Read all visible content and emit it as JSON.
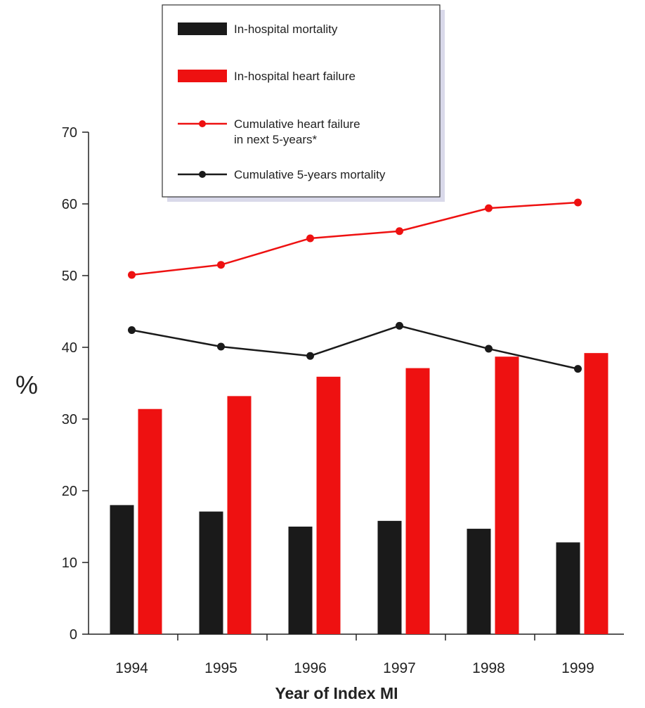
{
  "chart_data": {
    "type": "bar",
    "categories": [
      "1994",
      "1995",
      "1996",
      "1997",
      "1998",
      "1999"
    ],
    "series": [
      {
        "name": "In-hospital mortality",
        "kind": "bar",
        "color": "#1a1a1a",
        "values": [
          18.0,
          17.1,
          15.0,
          15.8,
          14.7,
          12.8
        ]
      },
      {
        "name": "In-hospital heart failure",
        "kind": "bar",
        "color": "#ee1111",
        "values": [
          31.4,
          33.2,
          35.9,
          37.1,
          38.7,
          39.2
        ]
      },
      {
        "name": "Cumulative heart failure in next 5-years*",
        "name_lines": [
          "Cumulative heart failure",
          "in next 5-years*"
        ],
        "kind": "line",
        "color": "#ee1111",
        "values": [
          50.1,
          51.5,
          55.2,
          56.2,
          59.4,
          60.2
        ]
      },
      {
        "name": "Cumulative 5-years mortality",
        "kind": "line",
        "color": "#1a1a1a",
        "values": [
          42.4,
          40.1,
          38.8,
          43.0,
          39.8,
          37.0
        ]
      }
    ],
    "xlabel": "Year of Index MI",
    "ylabel": "%",
    "ylim": [
      0,
      70
    ],
    "yticks": [
      0,
      10,
      20,
      30,
      40,
      50,
      60,
      70
    ],
    "grid": false,
    "legend_position": "top-center"
  }
}
